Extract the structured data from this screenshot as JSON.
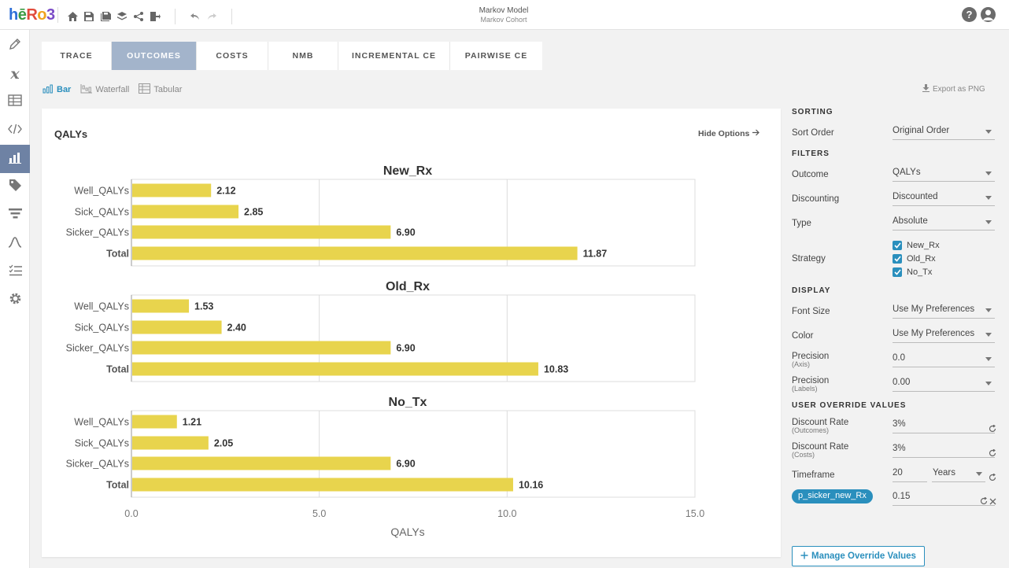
{
  "app": {
    "logo": "hēRo3",
    "title": "Markov Model",
    "subtitle": "Markov Cohort",
    "help_label": "?"
  },
  "tabs": [
    "TRACE",
    "OUTCOMES",
    "COSTS",
    "NMB",
    "INCREMENTAL CE",
    "PAIRWISE CE"
  ],
  "active_tab": "OUTCOMES",
  "view_tabs": [
    "Bar",
    "Waterfall",
    "Tabular"
  ],
  "active_view": "Bar",
  "export_label": "Export as PNG",
  "chart_card": {
    "title": "QALYs",
    "hide_options": "Hide Options"
  },
  "chart_data": {
    "type": "bar",
    "orientation": "horizontal",
    "categories": [
      "Well_QALYs",
      "Sick_QALYs",
      "Sicker_QALYs",
      "Total"
    ],
    "panels": [
      {
        "title": "New_Rx",
        "values": [
          2.12,
          2.85,
          6.9,
          11.87
        ],
        "labels": [
          "2.12",
          "2.85",
          "6.90",
          "11.87"
        ]
      },
      {
        "title": "Old_Rx",
        "values": [
          1.53,
          2.4,
          6.9,
          10.83
        ],
        "labels": [
          "1.53",
          "2.40",
          "6.90",
          "10.83"
        ]
      },
      {
        "title": "No_Tx",
        "values": [
          1.21,
          2.05,
          6.9,
          10.16
        ],
        "labels": [
          "1.21",
          "2.05",
          "6.90",
          "10.16"
        ]
      }
    ],
    "xlabel": "QALYs",
    "xlim": [
      0,
      15
    ],
    "xticks": [
      0,
      5,
      10,
      15
    ],
    "xtick_labels": [
      "0.0",
      "5.0",
      "10.0",
      "15.0"
    ],
    "bar_color": "#e8d44d",
    "grid": true
  },
  "panel": {
    "sorting_head": "SORTING",
    "sort_order_label": "Sort Order",
    "sort_order_value": "Original Order",
    "filters_head": "FILTERS",
    "outcome_label": "Outcome",
    "outcome_value": "QALYs",
    "discounting_label": "Discounting",
    "discounting_value": "Discounted",
    "type_label": "Type",
    "type_value": "Absolute",
    "strategy_label": "Strategy",
    "strategies": [
      "New_Rx",
      "Old_Rx",
      "No_Tx"
    ],
    "display_head": "DISPLAY",
    "font_size_label": "Font Size",
    "font_size_value": "Use My Preferences",
    "color_label": "Color",
    "color_value": "Use My Preferences",
    "precision_axis_label": "Precision",
    "precision_axis_sub": "(Axis)",
    "precision_axis_value": "0.0",
    "precision_labels_label": "Precision",
    "precision_labels_sub": "(Labels)",
    "precision_labels_value": "0.00",
    "override_head": "USER OVERRIDE VALUES",
    "dr_outcomes_label": "Discount Rate",
    "dr_outcomes_sub": "(Outcomes)",
    "dr_outcomes_value": "3%",
    "dr_costs_label": "Discount Rate",
    "dr_costs_sub": "(Costs)",
    "dr_costs_value": "3%",
    "timeframe_label": "Timeframe",
    "timeframe_value": "20",
    "timeframe_unit": "Years",
    "param_chip": "p_sicker_new_Rx",
    "param_value": "0.15",
    "manage_button": "Manage Override Values"
  },
  "colors": {
    "accent": "#2a8fbd",
    "active_tab": "#a3b4cb",
    "sidebar_active": "#6e82a4"
  }
}
